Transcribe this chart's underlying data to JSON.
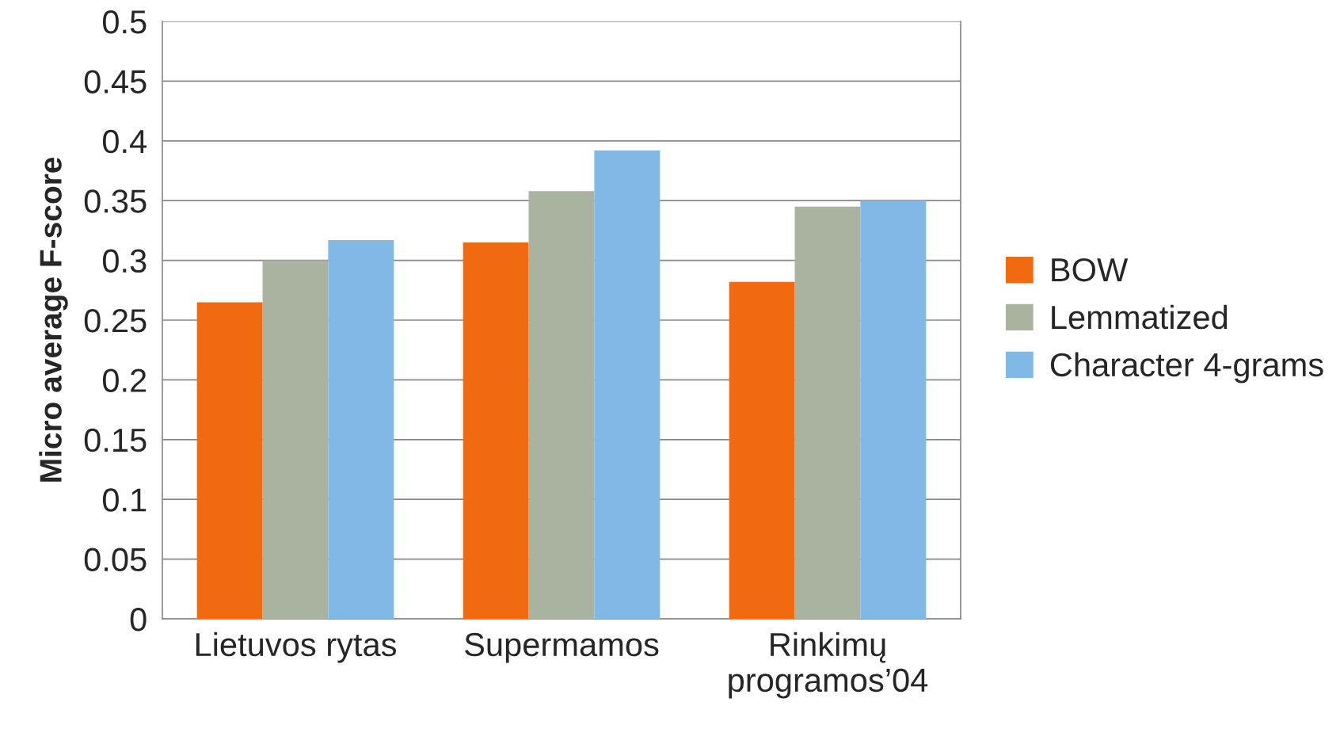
{
  "chart_data": {
    "type": "bar",
    "ylabel": "Micro average F-score",
    "categories": [
      "Lietuvos rytas",
      "Supermamos",
      "Rinkimų\nprogramos’04"
    ],
    "series": [
      {
        "name": "BOW",
        "color": "#f26a0f",
        "values": [
          0.265,
          0.315,
          0.282
        ]
      },
      {
        "name": "Lemmatized",
        "color": "#aab2a0",
        "values": [
          0.3,
          0.358,
          0.345
        ]
      },
      {
        "name": "Character 4-grams",
        "color": "#80b8e6",
        "values": [
          0.317,
          0.392,
          0.35
        ]
      }
    ],
    "ylim": [
      0,
      0.5
    ],
    "yticks": [
      0,
      0.05,
      0.1,
      0.15,
      0.2,
      0.25,
      0.3,
      0.35,
      0.4,
      0.45,
      0.5
    ],
    "grid": "y",
    "legend": "right"
  }
}
